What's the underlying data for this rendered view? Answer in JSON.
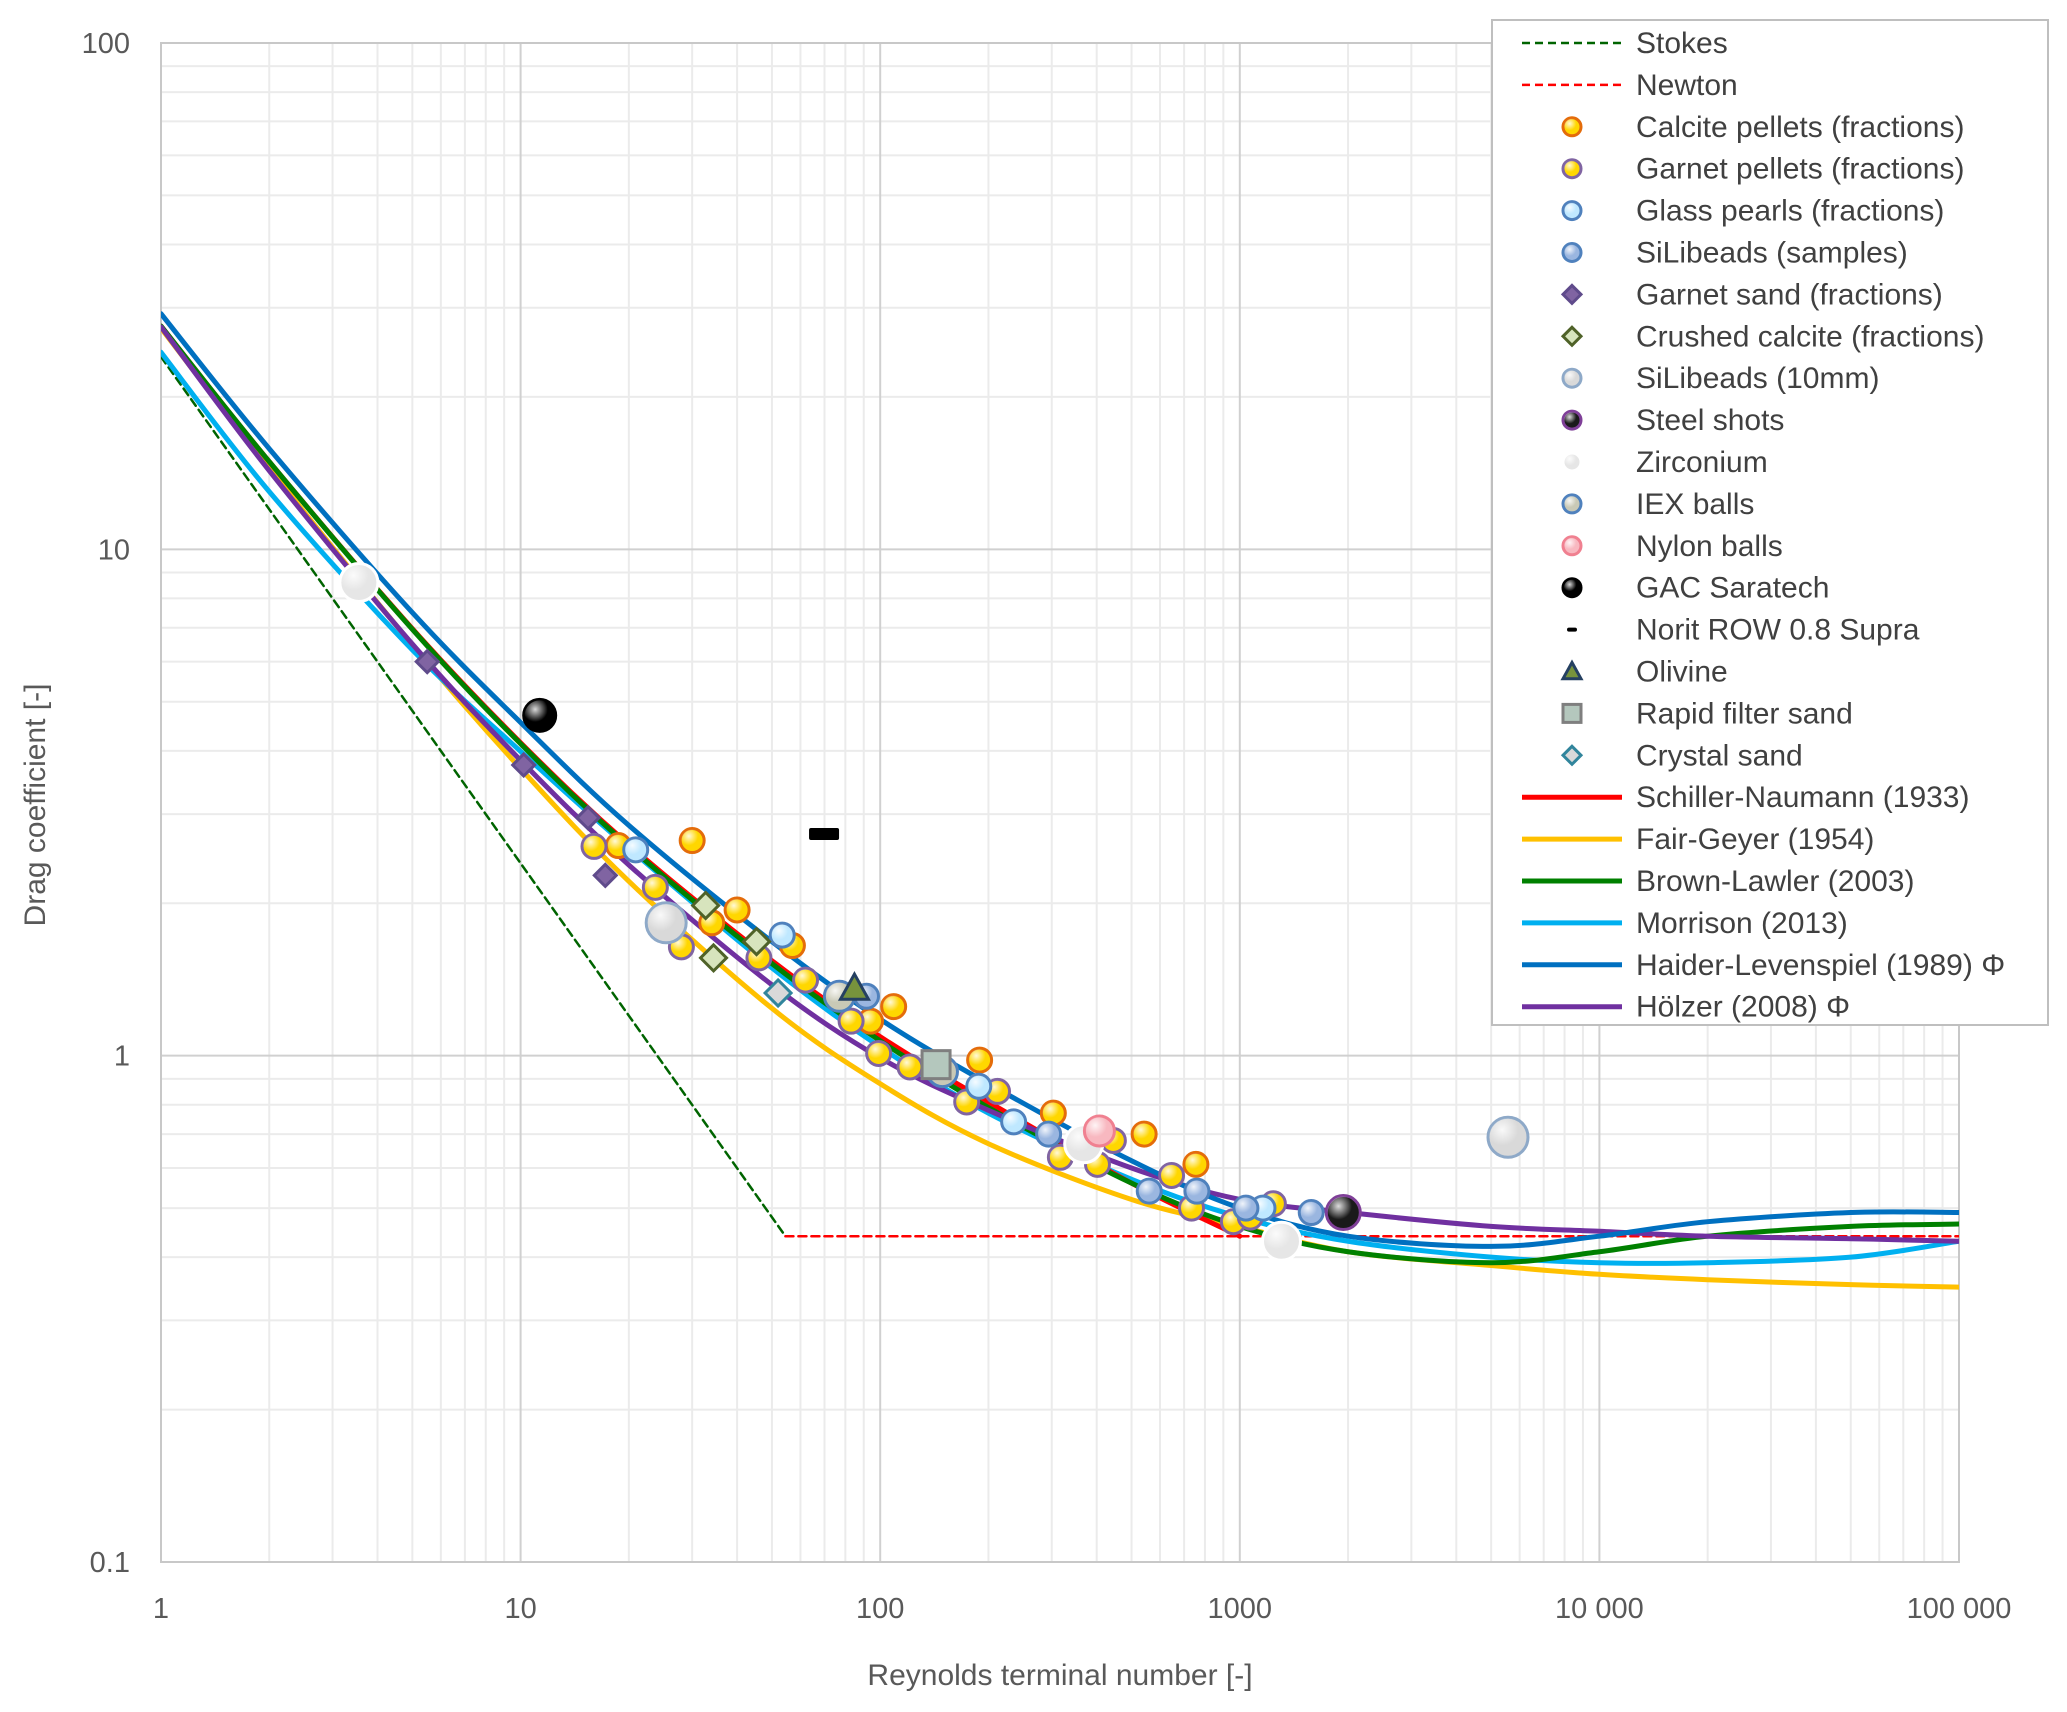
{
  "chart_data": {
    "type": "scatter",
    "title": "",
    "xlabel": "Reynolds terminal number  [-]",
    "ylabel": "Drag coefficient [-]",
    "xscale": "log",
    "yscale": "log",
    "xlim": [
      1,
      100000
    ],
    "ylim": [
      0.1,
      100
    ],
    "grid": true,
    "legend_position": "top-right",
    "x_ticks": [
      {
        "value": 1,
        "label": "1"
      },
      {
        "value": 10,
        "label": "10"
      },
      {
        "value": 100,
        "label": "100"
      },
      {
        "value": 1000,
        "label": "1000"
      },
      {
        "value": 10000,
        "label": "10 000"
      },
      {
        "value": 100000,
        "label": "100 000"
      }
    ],
    "y_ticks": [
      {
        "value": 0.1,
        "label": "0.1"
      },
      {
        "value": 1,
        "label": "1"
      },
      {
        "value": 10,
        "label": "10"
      },
      {
        "value": 100,
        "label": "100"
      }
    ],
    "series": [
      {
        "name": "Stokes",
        "kind": "line",
        "style": "dashed",
        "color": "#006400",
        "x": [
          1,
          54.5
        ],
        "y": [
          24,
          0.44
        ]
      },
      {
        "name": "Newton",
        "kind": "line",
        "style": "dashed",
        "color": "#ff0000",
        "x": [
          54.5,
          100000
        ],
        "y": [
          0.44,
          0.44
        ]
      },
      {
        "name": "Calcite pellets (fractions)",
        "kind": "marker",
        "marker": "circle",
        "fill": "#ffd700",
        "stroke": "#e46c0a",
        "x": [
          18.7,
          30,
          34,
          40,
          57,
          94,
          109,
          189,
          303,
          542,
          755
        ],
        "y": [
          2.6,
          2.66,
          1.83,
          1.94,
          1.65,
          1.17,
          1.25,
          0.98,
          0.77,
          0.7,
          0.61
        ]
      },
      {
        "name": "Garnet pellets (fractions)",
        "kind": "marker",
        "marker": "circle",
        "fill": "#ffd700",
        "stroke": "#8064a2",
        "x": [
          16,
          23.7,
          28,
          46,
          62,
          83,
          99,
          121,
          174,
          212,
          317,
          402,
          445,
          646,
          734,
          960,
          1070,
          1240
        ],
        "y": [
          2.59,
          2.15,
          1.64,
          1.56,
          1.41,
          1.17,
          1.01,
          0.95,
          0.81,
          0.85,
          0.63,
          0.61,
          0.68,
          0.58,
          0.5,
          0.47,
          0.48,
          0.51
        ]
      },
      {
        "name": "Glass pearls (fractions)",
        "kind": "marker",
        "marker": "circle",
        "fill": "#bfe8ff",
        "stroke": "#4f81bd",
        "x": [
          20.9,
          53.4,
          188,
          235,
          1160
        ],
        "y": [
          2.55,
          1.73,
          0.87,
          0.74,
          0.5
        ]
      },
      {
        "name": "SiLibeads (samples)",
        "kind": "marker",
        "marker": "circle",
        "fill": "#9ab6e0",
        "stroke": "#4f81bd",
        "x": [
          91.6,
          294,
          560,
          760,
          1040,
          1580
        ],
        "y": [
          1.31,
          0.7,
          0.54,
          0.54,
          0.5,
          0.49
        ]
      },
      {
        "name": "Garnet sand (fractions)",
        "kind": "marker",
        "marker": "diamond",
        "fill": "#8064a2",
        "stroke": "#5f4b8b",
        "x": [
          5.5,
          10.2,
          15.4,
          17.2
        ],
        "y": [
          6.0,
          3.75,
          2.95,
          2.27
        ]
      },
      {
        "name": "Crushed calcite (fractions)",
        "kind": "marker",
        "marker": "diamond",
        "fill": "#d7e4bd",
        "stroke": "#4f6228",
        "x": [
          32.7,
          34.4,
          45.3
        ],
        "y": [
          1.98,
          1.56,
          1.68
        ]
      },
      {
        "name": "SiLibeads (10mm)",
        "kind": "marker",
        "marker": "circle",
        "fill": "#d9d9d9",
        "stroke": "#8ea9c8",
        "x": [
          25.4,
          5570
        ],
        "y": [
          1.83,
          0.69
        ]
      },
      {
        "name": "Steel shots",
        "kind": "marker",
        "marker": "circle",
        "fill": "#1a1a1a",
        "stroke": "#7f3f98",
        "x": [
          1940
        ],
        "y": [
          0.49
        ]
      },
      {
        "name": "Zirconium",
        "kind": "marker",
        "marker": "circle",
        "fill": "#e6e6e6",
        "stroke": "#ffffff",
        "x": [
          3.55,
          368,
          1306
        ],
        "y": [
          8.6,
          0.67,
          0.43
        ]
      },
      {
        "name": "IEX balls",
        "kind": "marker",
        "marker": "circle",
        "fill": "#c9c9b6",
        "stroke": "#4f81bd",
        "x": [
          77,
          149
        ],
        "y": [
          1.31,
          0.93
        ]
      },
      {
        "name": "Nylon balls",
        "kind": "marker",
        "marker": "circle",
        "fill": "#f8b8c0",
        "stroke": "#f08090",
        "x": [
          407
        ],
        "y": [
          0.71
        ]
      },
      {
        "name": "GAC Saratech",
        "kind": "marker",
        "marker": "circle",
        "fill": "#000000",
        "stroke": "#000000",
        "x": [
          11.3
        ],
        "y": [
          4.7
        ]
      },
      {
        "name": "Norit ROW 0.8 Supra",
        "kind": "marker",
        "marker": "dash",
        "fill": "#000000",
        "stroke": "#000000",
        "x": [
          69.8
        ],
        "y": [
          2.74
        ]
      },
      {
        "name": "Olivine",
        "kind": "marker",
        "marker": "triangle",
        "fill": "#77933c",
        "stroke": "#254061",
        "x": [
          84.8
        ],
        "y": [
          1.36
        ]
      },
      {
        "name": "Rapid filter sand",
        "kind": "marker",
        "marker": "square",
        "fill": "#b4c7bd",
        "stroke": "#7f7f7f",
        "x": [
          143
        ],
        "y": [
          0.96
        ]
      },
      {
        "name": "Crystal sand",
        "kind": "marker",
        "marker": "diamond",
        "fill": "#d9d9d9",
        "stroke": "#31859c",
        "x": [
          52
        ],
        "y": [
          1.33
        ]
      },
      {
        "name": "Schiller-Naumann (1933)",
        "kind": "line",
        "style": "solid",
        "color": "#ff0000",
        "x": [
          1,
          2,
          5,
          10,
          20,
          50,
          100,
          200,
          500,
          1000
        ],
        "y": [
          27.6,
          14.9,
          6.97,
          4.15,
          2.61,
          1.54,
          1.09,
          0.81,
          0.56,
          0.44
        ]
      },
      {
        "name": "Fair-Geyer (1954)",
        "kind": "line",
        "style": "solid",
        "color": "#ffc000",
        "x": [
          1,
          2,
          5,
          10,
          20,
          50,
          100,
          200,
          500,
          1000,
          2000,
          5000,
          10000,
          20000,
          50000,
          100000
        ],
        "y": [
          27.34,
          14.46,
          6.48,
          3.69,
          2.21,
          1.24,
          0.88,
          0.67,
          0.52,
          0.46,
          0.41,
          0.385,
          0.37,
          0.361,
          0.353,
          0.349
        ]
      },
      {
        "name": "Brown-Lawler (2003)",
        "kind": "line",
        "style": "solid",
        "color": "#008000",
        "x": [
          1,
          2,
          5,
          10,
          20,
          50,
          100,
          200,
          500,
          1000,
          2000,
          5000,
          10000,
          20000,
          50000,
          100000
        ],
        "y": [
          27.6,
          14.9,
          6.95,
          4.13,
          2.59,
          1.52,
          1.07,
          0.79,
          0.56,
          0.46,
          0.41,
          0.39,
          0.41,
          0.44,
          0.46,
          0.465
        ]
      },
      {
        "name": "Morrison (2013)",
        "kind": "line",
        "style": "solid",
        "color": "#00b0f0",
        "x": [
          1,
          2,
          5,
          10,
          20,
          50,
          100,
          200,
          500,
          1000,
          2000,
          5000,
          10000,
          20000,
          50000,
          100000
        ],
        "y": [
          24.5,
          13.0,
          6.33,
          3.99,
          2.57,
          1.49,
          1.04,
          0.77,
          0.57,
          0.48,
          0.43,
          0.4,
          0.39,
          0.39,
          0.4,
          0.43
        ]
      },
      {
        "name": "Haider-Levenspiel (1989) Φ",
        "kind": "line",
        "style": "solid",
        "color": "#0070c0",
        "x": [
          1,
          2,
          5,
          10,
          20,
          50,
          100,
          200,
          500,
          1000,
          2000,
          5000,
          10000,
          20000,
          50000,
          100000
        ],
        "y": [
          29.2,
          15.8,
          7.5,
          4.55,
          2.85,
          1.68,
          1.18,
          0.88,
          0.62,
          0.5,
          0.44,
          0.42,
          0.44,
          0.47,
          0.49,
          0.49
        ]
      },
      {
        "name": "Hölzer (2008) Φ",
        "kind": "line",
        "style": "solid",
        "color": "#7030a0",
        "x": [
          1,
          2,
          5,
          10,
          20,
          50,
          100,
          200,
          500,
          1000,
          2000,
          5000,
          10000,
          20000,
          50000,
          100000
        ],
        "y": [
          27.5,
          14.3,
          6.5,
          3.83,
          2.38,
          1.38,
          0.99,
          0.78,
          0.6,
          0.52,
          0.49,
          0.46,
          0.45,
          0.44,
          0.435,
          0.43
        ]
      }
    ]
  }
}
